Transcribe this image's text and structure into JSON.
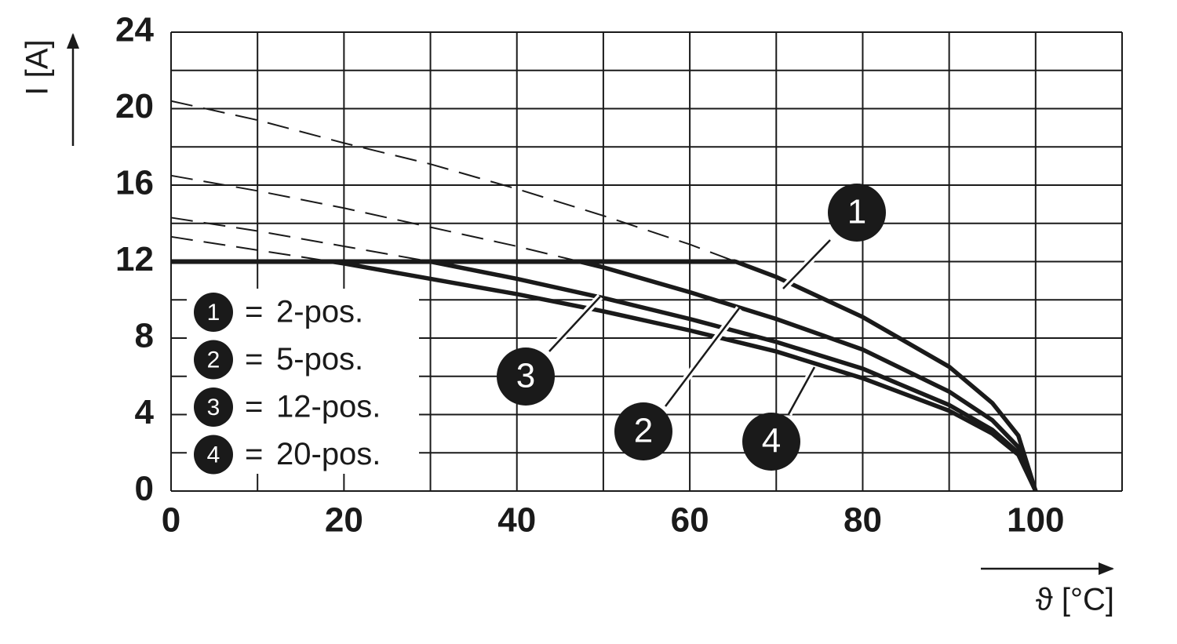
{
  "chart_data": {
    "type": "derating",
    "x_label": "ϑ [°C]",
    "y_label": "I [A]",
    "x": [
      0,
      10,
      20,
      30,
      40,
      50,
      60,
      70,
      80,
      90,
      95,
      98,
      100
    ],
    "limit": 12,
    "series": [
      {
        "label": "1",
        "name": "2-pos.",
        "color": "#1a1a1a",
        "values": [
          20.4,
          19.4,
          18.2,
          17.1,
          15.8,
          14.4,
          12.9,
          11.2,
          9.1,
          6.5,
          4.6,
          2.9,
          0
        ]
      },
      {
        "label": "2",
        "name": "5-pos.",
        "color": "#1a1a1a",
        "values": [
          16.5,
          15.7,
          14.8,
          13.8,
          12.8,
          11.7,
          10.4,
          9.0,
          7.4,
          5.2,
          3.7,
          2.3,
          0
        ]
      },
      {
        "label": "3",
        "name": "12-pos.",
        "color": "#1a1a1a",
        "values": [
          14.3,
          13.6,
          12.8,
          12.0,
          11.1,
          10.1,
          9.0,
          7.8,
          6.4,
          4.5,
          3.2,
          2.0,
          0
        ]
      },
      {
        "label": "4",
        "name": "20-pos.",
        "color": "#1a1a1a",
        "values": [
          13.3,
          12.6,
          11.9,
          11.1,
          10.3,
          9.4,
          8.4,
          7.3,
          5.9,
          4.2,
          3.0,
          1.9,
          0
        ]
      }
    ],
    "legend_separator": "=",
    "xlim": [
      0,
      110
    ],
    "ylim": [
      0,
      24
    ],
    "xticks": [
      0,
      20,
      40,
      60,
      80,
      100
    ],
    "yticks": [
      0,
      4,
      8,
      12,
      16,
      20,
      24
    ],
    "xgrid": [
      0,
      10,
      20,
      30,
      40,
      50,
      60,
      70,
      80,
      90,
      100,
      110
    ],
    "ygrid": [
      0,
      2,
      4,
      6,
      8,
      10,
      12,
      14,
      16,
      18,
      20,
      22,
      24
    ],
    "grid": true
  }
}
